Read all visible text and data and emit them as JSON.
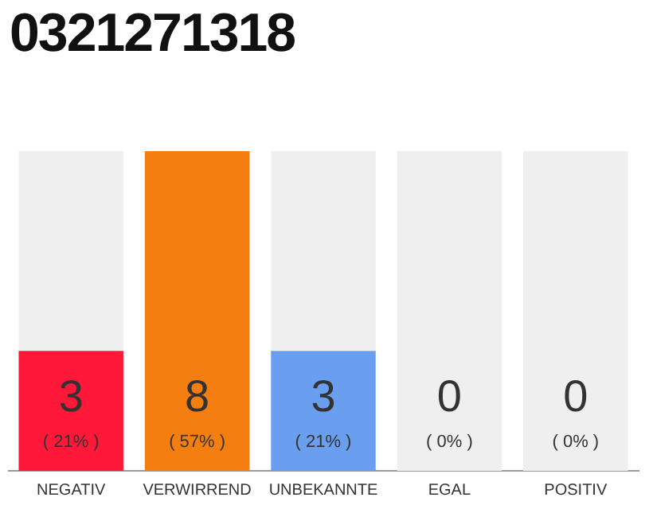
{
  "chart_data": {
    "type": "bar",
    "title": "0321271318",
    "categories": [
      "NEGATIV",
      "VERWIRREND",
      "UNBEKANNTE",
      "EGAL",
      "POSITIV"
    ],
    "series": [
      {
        "colors": [
          "#ff1837",
          "#f47f10",
          "#6a9ff0",
          "#efefef",
          "#efefef"
        ],
        "values": [
          3,
          8,
          3,
          0,
          0
        ],
        "value_labels": [
          "3",
          "8",
          "3",
          null,
          null
        ]
      },
      {
        "color": "#efefef",
        "values": [
          5,
          0,
          5,
          8,
          8
        ]
      }
    ],
    "stacked": true,
    "ylim": [
      0,
      8
    ],
    "tick_labels": "x",
    "grid": false,
    "legend": false,
    "annotations": [
      "( 21% )",
      "( 57% )",
      "( 21% )",
      "( 0% )",
      "( 0% )",
      {
        "text": "0",
        "x": "EGAL",
        "y": 0
      },
      {
        "text": "0",
        "x": "POSITIV",
        "y": 0
      }
    ]
  }
}
